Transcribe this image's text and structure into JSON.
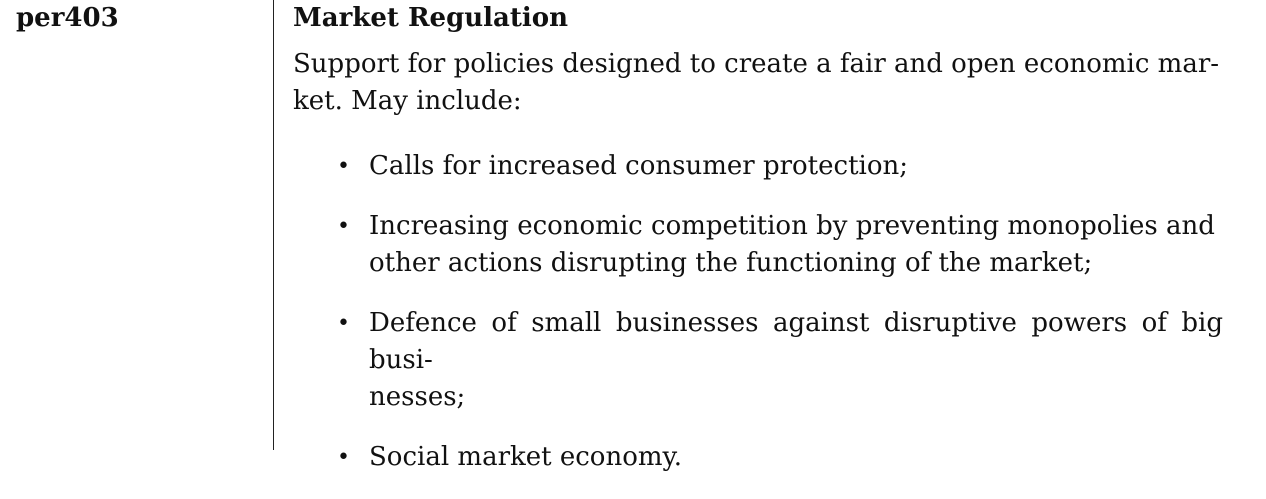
{
  "entry": {
    "code": "per403",
    "title": "Market Regulation",
    "description": "Support for policies designed to create a fair and open economic mar-ket. May include:",
    "description_lines": [
      "Support for policies designed to create a fair and open economic mar-",
      "ket. May include:"
    ],
    "items": [
      {
        "lines": [
          "Calls for increased consumer protection;"
        ]
      },
      {
        "lines": [
          "Increasing economic competition by preventing monopolies and",
          "other actions disrupting the functioning of the market;"
        ]
      },
      {
        "lines": [
          "Defence of small businesses against disruptive powers of big busi-",
          "nesses;"
        ]
      },
      {
        "lines": [
          "Social market economy."
        ]
      }
    ]
  }
}
